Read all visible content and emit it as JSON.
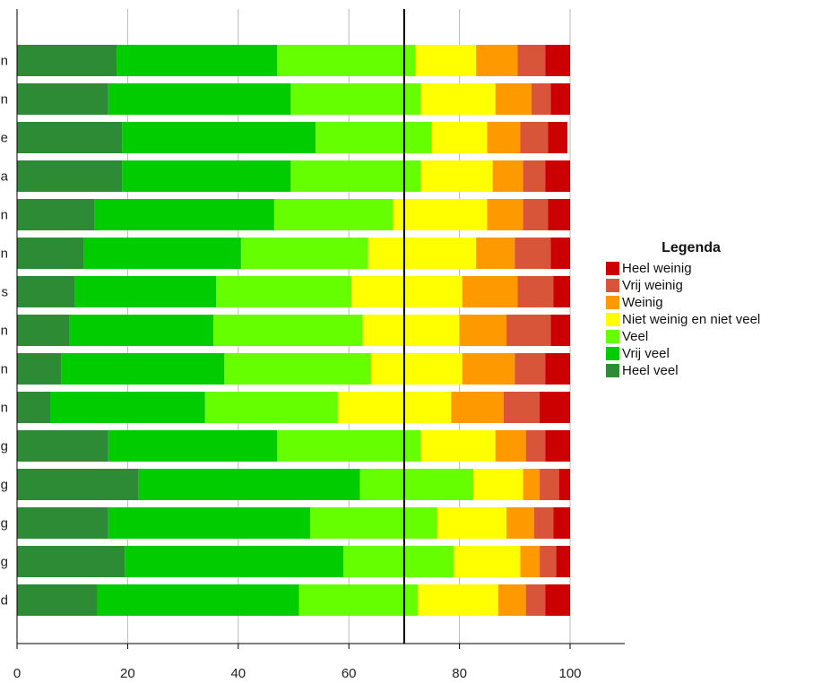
{
  "chart_data": {
    "type": "bar",
    "orientation": "horizontal",
    "stacked": true,
    "categories": [
      "n",
      "n",
      "e",
      "a",
      "n",
      "n",
      "s",
      "n",
      "n",
      "n",
      "g",
      "g",
      "g",
      "g",
      "d"
    ],
    "series": [
      {
        "name": "Heel veel",
        "color": "#2e8b35",
        "values": [
          18,
          16.5,
          19,
          19,
          14,
          12,
          10.5,
          9.5,
          8,
          6,
          16.5,
          22,
          16.5,
          19.5,
          14.5
        ]
      },
      {
        "name": "Vrij veel",
        "color": "#00cc00",
        "values": [
          29,
          33,
          35,
          30.5,
          32.5,
          28.5,
          25.5,
          26,
          29.5,
          28,
          30.5,
          40,
          36.5,
          39.5,
          36.5
        ]
      },
      {
        "name": "Veel",
        "color": "#66ff00",
        "values": [
          25,
          23.5,
          21,
          23.5,
          21.5,
          23,
          24.5,
          27,
          26.5,
          24,
          26,
          20.5,
          23,
          20,
          21.5
        ]
      },
      {
        "name": "Niet weinig en niet veel",
        "color": "#ffff00",
        "values": [
          11,
          13.5,
          10,
          13,
          17,
          19.5,
          20,
          17.5,
          16.5,
          20.5,
          13.5,
          9,
          12.5,
          12,
          14.5
        ]
      },
      {
        "name": "Weinig",
        "color": "#ff9900",
        "values": [
          7.5,
          6.5,
          6,
          5.5,
          6.5,
          7,
          10,
          8.5,
          9.5,
          9.5,
          5.5,
          3,
          5,
          3.5,
          5
        ]
      },
      {
        "name": "Vrij weinig",
        "color": "#d9553a",
        "values": [
          5,
          3.5,
          5,
          4,
          4.5,
          6.5,
          6.5,
          8,
          5.5,
          6.5,
          3.5,
          3.5,
          3.5,
          3,
          3.5
        ]
      },
      {
        "name": "Heel weinig",
        "color": "#cc0000",
        "values": [
          4.5,
          3.5,
          3.5,
          4.5,
          4,
          3.5,
          3,
          3.5,
          4.5,
          5.5,
          4.5,
          2,
          3,
          2.5,
          4.5
        ]
      }
    ],
    "xlim": [
      0,
      110
    ],
    "xticks": [
      0,
      20,
      40,
      60,
      80,
      100
    ],
    "reference_line": 70,
    "grid": true,
    "legend": {
      "title": "Legenda",
      "position": "right",
      "order": [
        "Heel weinig",
        "Vrij weinig",
        "Weinig",
        "Niet weinig en niet veel",
        "Veel",
        "Vrij veel",
        "Heel veel"
      ]
    }
  }
}
